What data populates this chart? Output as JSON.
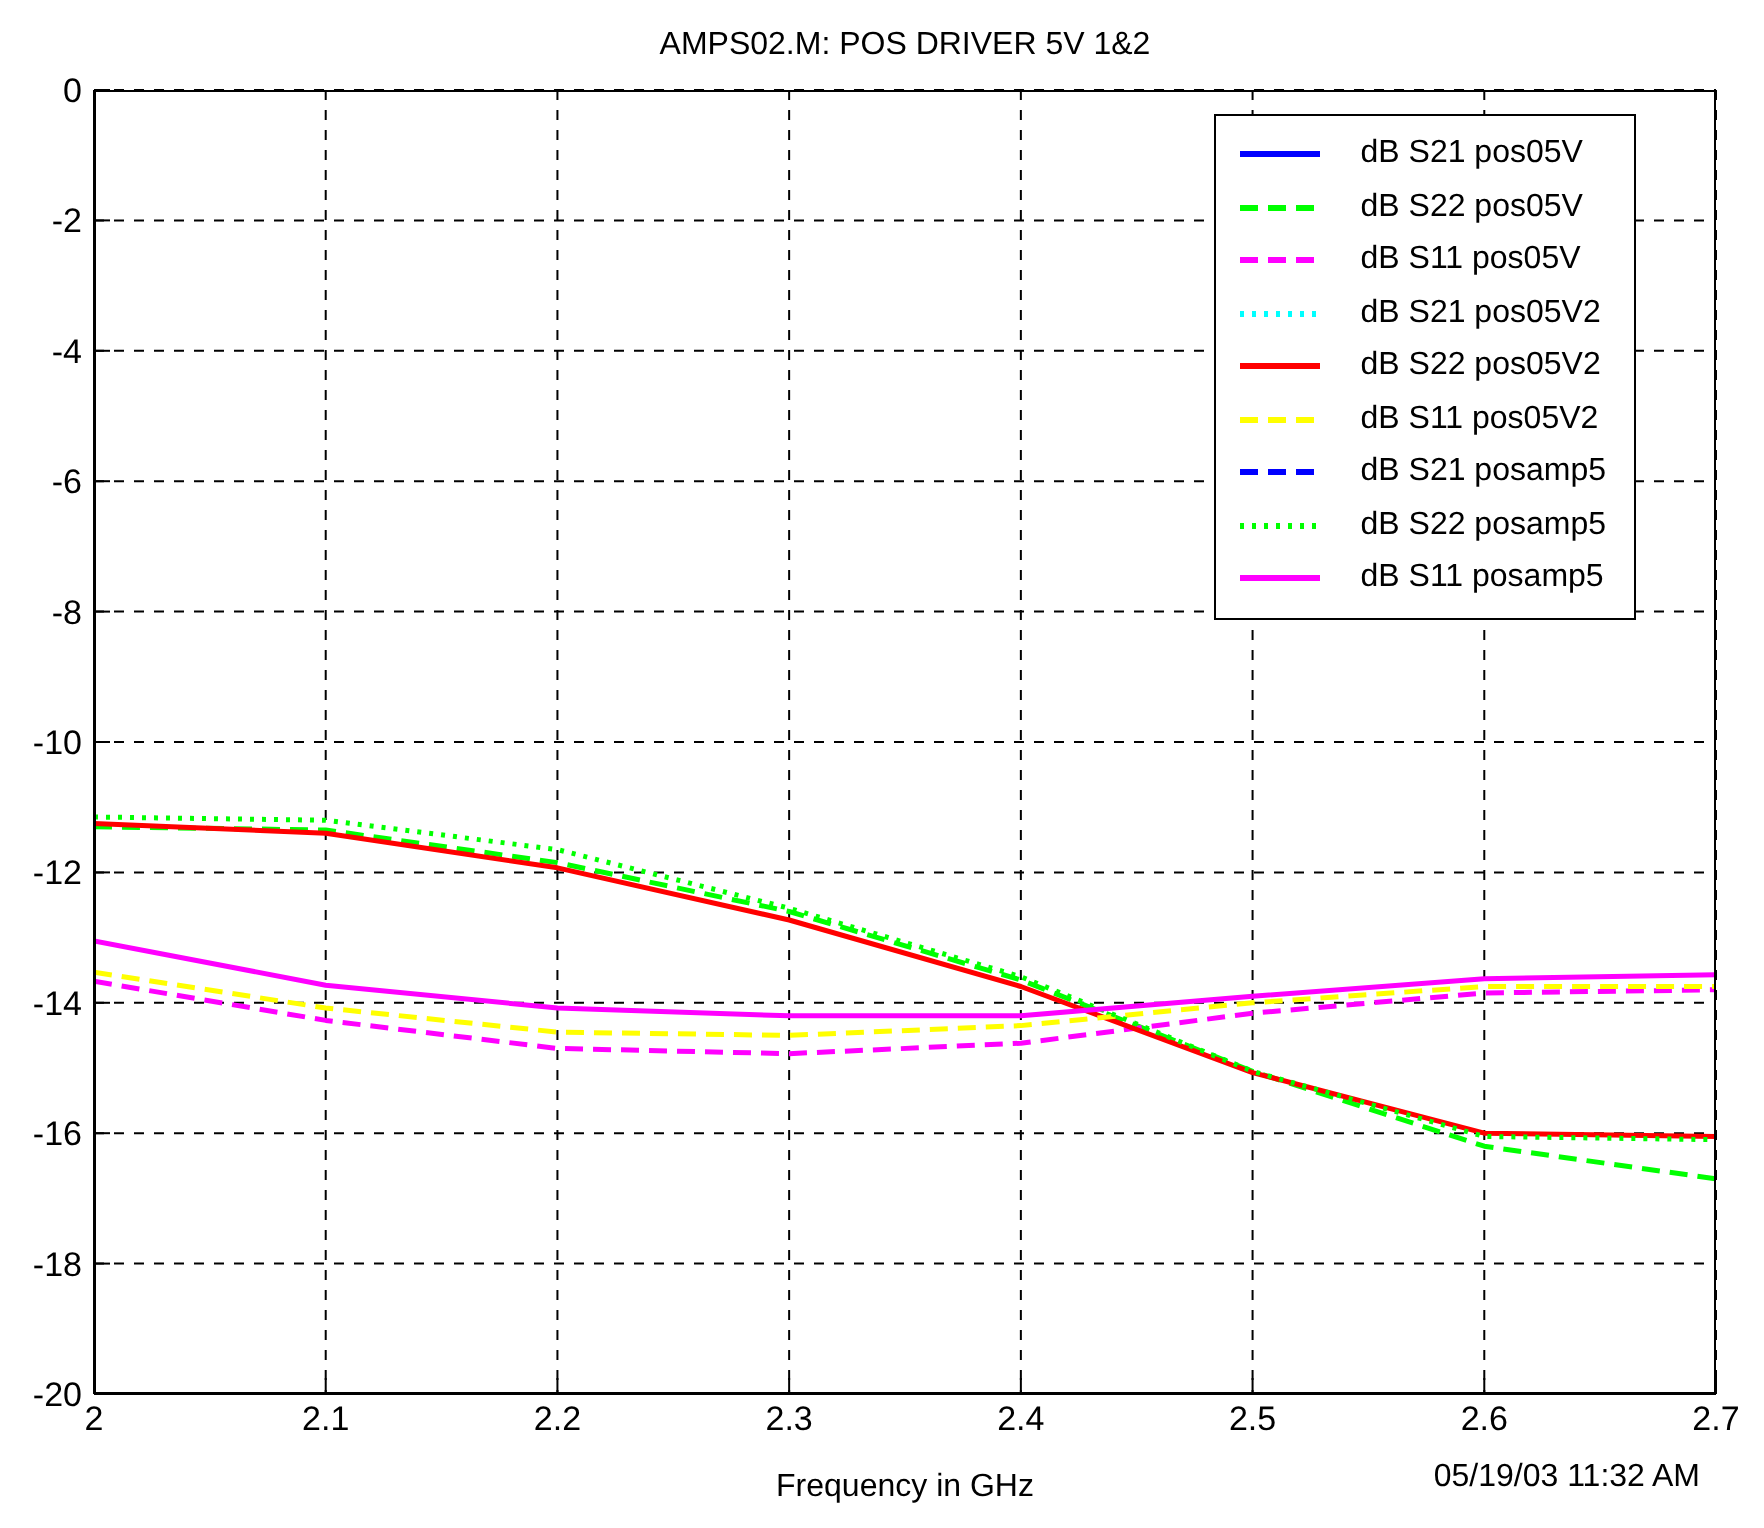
{
  "chart_data": {
    "type": "line",
    "title": "AMPS02.M:  POS DRIVER 5V 1&2",
    "xlabel": "Frequency in GHz",
    "annotations": [
      "05/19/03 11:32 AM"
    ],
    "x": [
      2,
      2.1,
      2.2,
      2.3,
      2.4,
      2.5,
      2.6,
      2.7
    ],
    "xlim": [
      2,
      2.7
    ],
    "xticks": [
      2,
      2.1,
      2.2,
      2.3,
      2.4,
      2.5,
      2.6,
      2.7
    ],
    "ylim": [
      -20,
      0
    ],
    "yticks": [
      -20,
      -18,
      -16,
      -14,
      -12,
      -10,
      -8,
      -6,
      -4,
      -2,
      0
    ],
    "grid": true,
    "legend": "top right",
    "marker": "none",
    "series": [
      {
        "name": "dB S21 pos05V",
        "color": "#0000ff",
        "line_style": "solid",
        "values": [
          null,
          null,
          null,
          null,
          null,
          null,
          null,
          null
        ]
      },
      {
        "name": "dB S22 pos05V",
        "color": "#00ff00",
        "line_style": "dashed",
        "values": [
          -11.3,
          -11.35,
          -11.85,
          -12.6,
          -13.65,
          -15.05,
          -16.2,
          -16.7
        ]
      },
      {
        "name": "dB S11 pos05V",
        "color": "#ff00ff",
        "line_style": "dashed",
        "values": [
          -13.67,
          -14.27,
          -14.7,
          -14.78,
          -14.62,
          -14.16,
          -13.85,
          -13.8
        ]
      },
      {
        "name": "dB S21 pos05V2",
        "color": "#00ffff",
        "line_style": "dotted",
        "values": [
          null,
          null,
          null,
          null,
          null,
          null,
          null,
          null
        ]
      },
      {
        "name": "dB S22 pos05V2",
        "color": "#ff0000",
        "line_style": "solid",
        "values": [
          -11.25,
          -11.4,
          -11.93,
          -12.73,
          -13.75,
          -15.07,
          -16.0,
          -16.05
        ]
      },
      {
        "name": "dB S11 pos05V2",
        "color": "#ffff00",
        "line_style": "dashed",
        "values": [
          -13.53,
          -14.08,
          -14.45,
          -14.5,
          -14.35,
          -14.0,
          -13.75,
          -13.75
        ]
      },
      {
        "name": "dB S21 posamp5",
        "color": "#0000ff",
        "line_style": "dashed",
        "values": [
          null,
          null,
          null,
          null,
          null,
          null,
          null,
          null
        ]
      },
      {
        "name": "dB S22 posamp5",
        "color": "#00ff00",
        "line_style": "dotted",
        "values": [
          -11.15,
          -11.2,
          -11.65,
          -12.55,
          -13.6,
          -15.05,
          -16.05,
          -16.1
        ]
      },
      {
        "name": "dB S11 posamp5",
        "color": "#ff00ff",
        "line_style": "solid",
        "values": [
          -13.05,
          -13.73,
          -14.08,
          -14.2,
          -14.2,
          -13.9,
          -13.63,
          -13.57
        ]
      }
    ]
  }
}
